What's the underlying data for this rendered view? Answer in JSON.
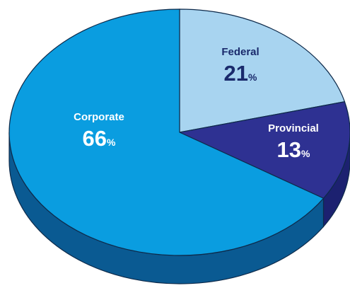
{
  "chart_data": {
    "type": "pie",
    "categories": [
      "Federal",
      "Provincial",
      "Corporate"
    ],
    "values": [
      21,
      13,
      66
    ],
    "unit": "%",
    "colors": [
      "#a8d4f0",
      "#2e3192",
      "#0a9de0"
    ],
    "side_colors": [
      "#7fb3d8",
      "#1c2170",
      "#0a5a92"
    ],
    "label_colors": [
      "#1a2a6c",
      "#ffffff",
      "#ffffff"
    ],
    "start_angle": -90
  }
}
